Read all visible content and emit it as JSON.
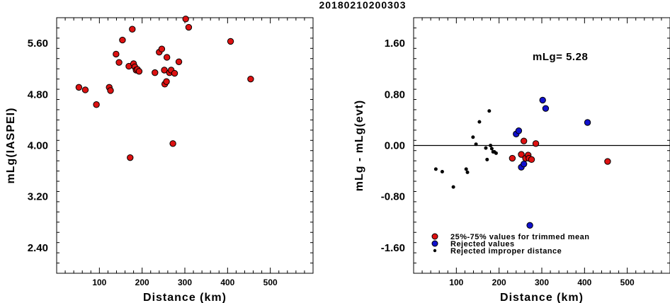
{
  "title": "20180210200303",
  "colors": {
    "red": "#dd1111",
    "blue": "#1111cc",
    "black": "#000000"
  },
  "chart_data": [
    {
      "type": "scatter",
      "xlabel": "Distance (km)",
      "ylabel": "mLg(IASPEI)",
      "xlim": [
        0,
        600
      ],
      "ylim": [
        2.0,
        6.0
      ],
      "xticks": [
        "100",
        "200",
        "300",
        "400",
        "500"
      ],
      "yticks": [
        "2.40",
        "3.20",
        "4.00",
        "4.80",
        "5.60"
      ],
      "series": [
        {
          "marker": "red-circle",
          "points": [
            [
              52,
              4.91
            ],
            [
              67,
              4.87
            ],
            [
              93,
              4.64
            ],
            [
              123,
              4.91
            ],
            [
              126,
              4.86
            ],
            [
              139,
              5.43
            ],
            [
              146,
              5.3
            ],
            [
              154,
              5.65
            ],
            [
              169,
              5.24
            ],
            [
              172,
              3.81
            ],
            [
              177,
              5.82
            ],
            [
              180,
              5.28
            ],
            [
              183,
              5.23
            ],
            [
              186,
              5.18
            ],
            [
              189,
              5.19
            ],
            [
              193,
              5.16
            ],
            [
              230,
              5.14
            ],
            [
              240,
              5.46
            ],
            [
              246,
              5.51
            ],
            [
              252,
              5.18
            ],
            [
              253,
              4.96
            ],
            [
              257,
              5.0
            ],
            [
              258,
              5.38
            ],
            [
              264,
              5.14
            ],
            [
              268,
              5.18
            ],
            [
              272,
              4.03
            ],
            [
              276,
              5.13
            ],
            [
              286,
              5.31
            ],
            [
              302,
              5.98
            ],
            [
              309,
              5.85
            ],
            [
              407,
              5.63
            ],
            [
              454,
              5.04
            ]
          ]
        }
      ]
    },
    {
      "type": "scatter",
      "xlabel": "Distance (km)",
      "ylabel": "mLg - mLg(evt)",
      "xlim": [
        0,
        600
      ],
      "ylim": [
        -2.0,
        2.0
      ],
      "xticks": [
        "100",
        "200",
        "300",
        "400",
        "500"
      ],
      "yticks": [
        "-1.60",
        "-0.80",
        "0.00",
        "0.80",
        "1.60"
      ],
      "annotation": "mLg= 5.28",
      "hline": 0,
      "legend": [
        {
          "marker": "red-circle",
          "label": "25%-75% values for trimmed mean"
        },
        {
          "marker": "blue-circle",
          "label": "Rejected values"
        },
        {
          "marker": "black-dot",
          "label": "Rejected improper distance"
        }
      ],
      "series": [
        {
          "name": "25%-75% values for trimmed mean",
          "marker": "red-circle",
          "points": [
            [
              231,
              -0.2
            ],
            [
              252,
              -0.14
            ],
            [
              258,
              0.07
            ],
            [
              262,
              -0.2
            ],
            [
              268,
              -0.15
            ],
            [
              270,
              -0.2
            ],
            [
              276,
              -0.22
            ],
            [
              286,
              0.03
            ],
            [
              454,
              -0.25
            ]
          ]
        },
        {
          "name": "Rejected values",
          "marker": "blue-circle",
          "points": [
            [
              240,
              0.18
            ],
            [
              246,
              0.23
            ],
            [
              252,
              -0.34
            ],
            [
              258,
              -0.29
            ],
            [
              272,
              -1.25
            ],
            [
              302,
              0.71
            ],
            [
              309,
              0.58
            ],
            [
              407,
              0.36
            ]
          ]
        },
        {
          "name": "Rejected improper distance",
          "marker": "black-dot",
          "points": [
            [
              52,
              -0.37
            ],
            [
              67,
              -0.41
            ],
            [
              93,
              -0.65
            ],
            [
              123,
              -0.37
            ],
            [
              126,
              -0.42
            ],
            [
              139,
              0.13
            ],
            [
              146,
              0.02
            ],
            [
              154,
              0.37
            ],
            [
              169,
              -0.04
            ],
            [
              172,
              -0.22
            ],
            [
              177,
              0.54
            ],
            [
              180,
              0.0
            ],
            [
              183,
              -0.05
            ],
            [
              186,
              -0.1
            ],
            [
              189,
              -0.1
            ],
            [
              193,
              -0.12
            ]
          ]
        }
      ]
    }
  ]
}
